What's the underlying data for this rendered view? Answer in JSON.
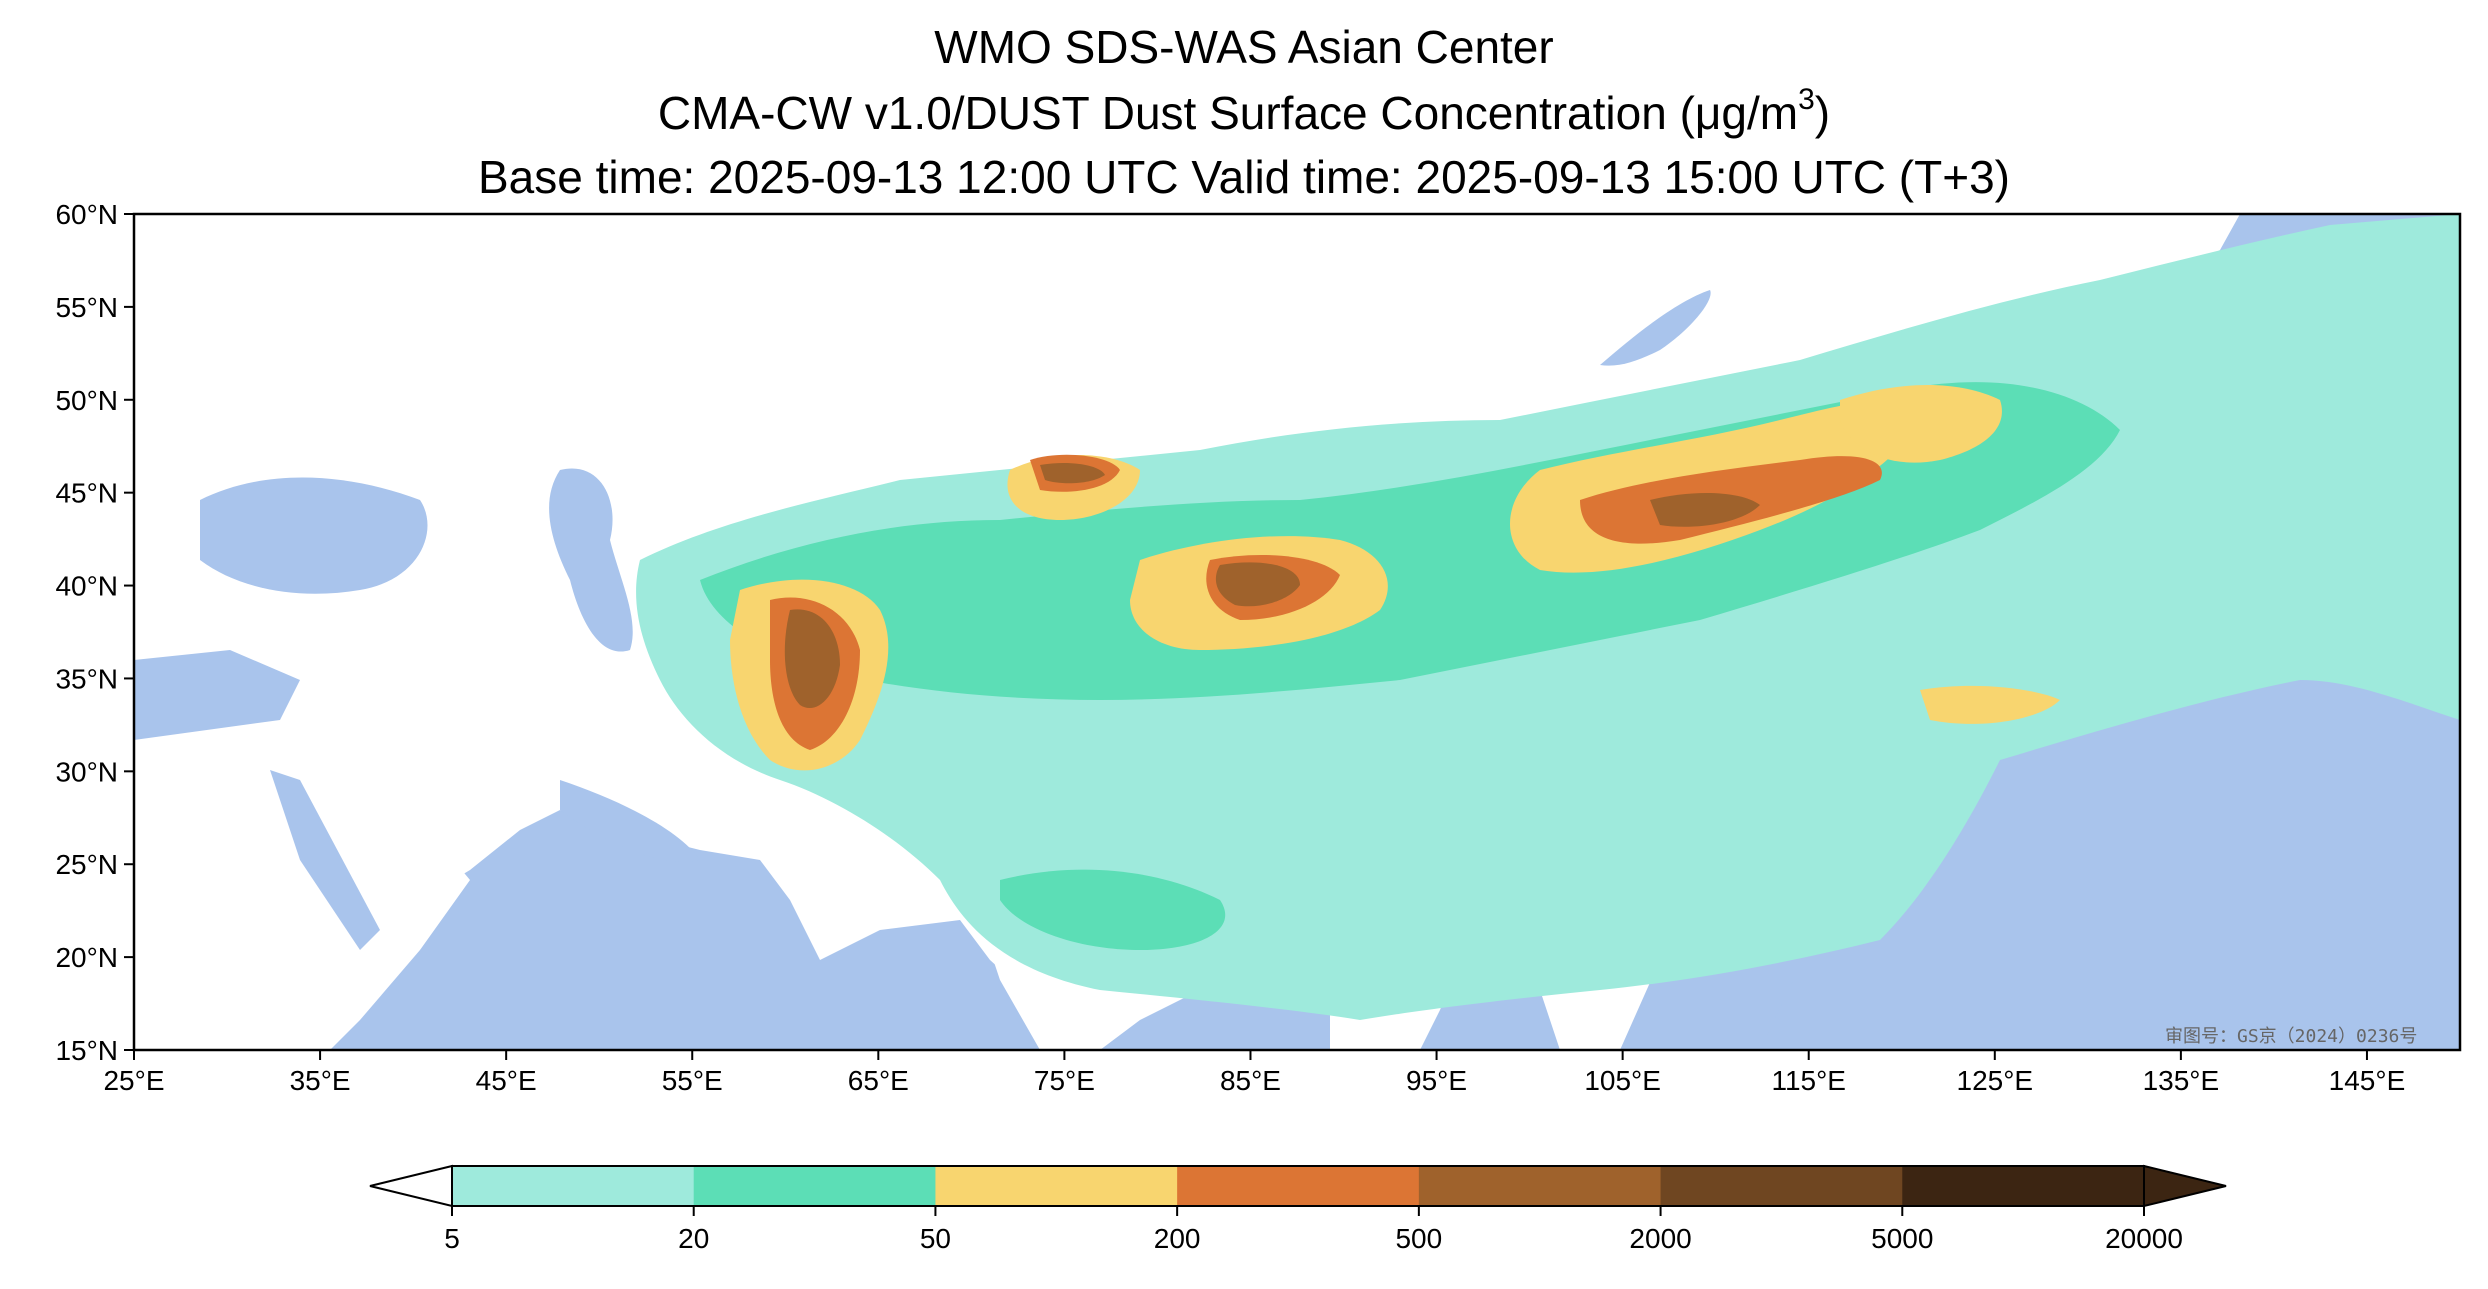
{
  "title": {
    "line1": "WMO SDS-WAS Asian Center",
    "line2_prefix": "CMA-CW v1.0/DUST Dust Surface Concentration (μg/m",
    "line2_sup": "3",
    "line2_suffix": ")",
    "line3": "Base time: 2025-09-13 12:00 UTC Valid time: 2025-09-13 15:00 UTC (T+3)"
  },
  "map": {
    "lon_range": [
      25,
      150
    ],
    "lat_range": [
      15,
      60
    ],
    "lon_ticks": [
      "25°E",
      "35°E",
      "45°E",
      "55°E",
      "65°E",
      "75°E",
      "85°E",
      "95°E",
      "105°E",
      "115°E",
      "125°E",
      "135°E",
      "145°E"
    ],
    "lat_ticks": [
      "15°N",
      "20°N",
      "25°N",
      "30°N",
      "35°N",
      "40°N",
      "45°N",
      "50°N",
      "55°N",
      "60°N"
    ],
    "lon_tick_values": [
      25,
      35,
      45,
      55,
      65,
      75,
      85,
      95,
      105,
      115,
      125,
      135,
      145
    ],
    "lat_tick_values": [
      15,
      20,
      25,
      30,
      35,
      40,
      45,
      50,
      55,
      60
    ],
    "ocean_color": "#a9c4ec",
    "land_color": "#ffffff",
    "stamp_text": "审图号：GS京（2024）0236号"
  },
  "colorbar": {
    "levels": [
      "5",
      "20",
      "50",
      "200",
      "500",
      "2000",
      "5000",
      "20000"
    ],
    "colors": [
      "#9eeadc",
      "#5cdeb6",
      "#f8d56f",
      "#dc7534",
      "#9f622c",
      "#6f4621",
      "#3c2512"
    ],
    "extend": "both"
  }
}
